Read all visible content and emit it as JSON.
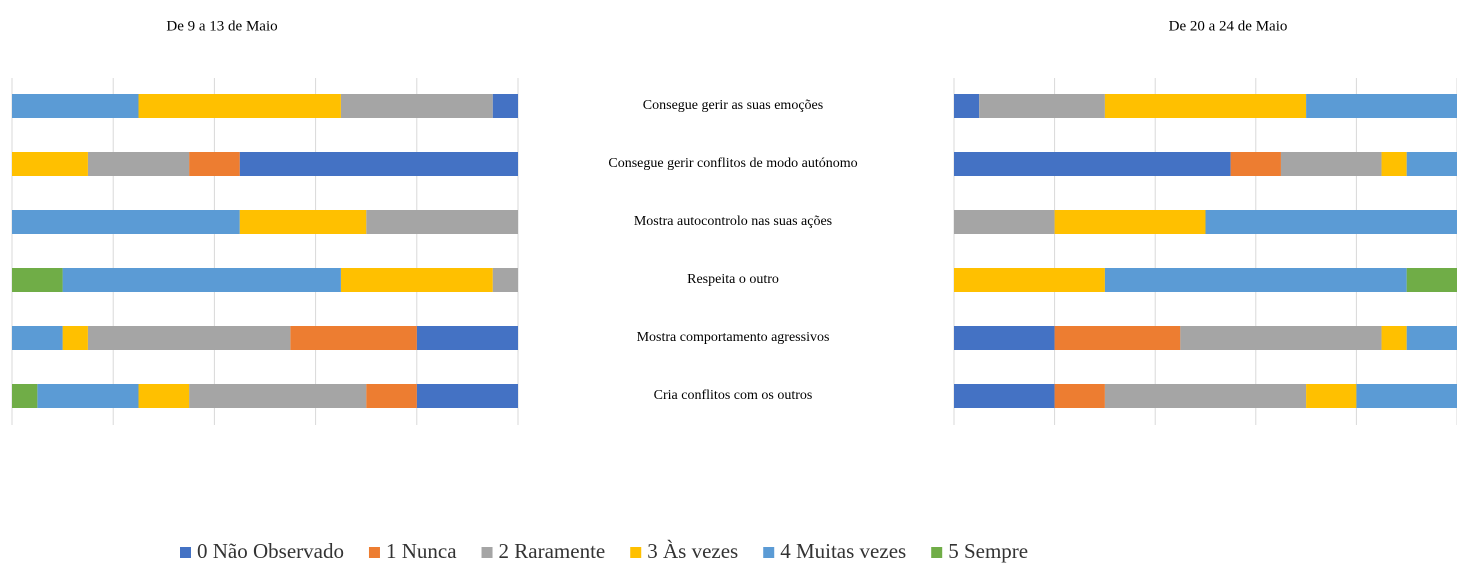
{
  "chart_data": [
    {
      "type": "bar",
      "orientation": "horizontal",
      "stacked": true,
      "x_reversed": true,
      "title": "De 9 a 13 de Maio",
      "categories": [
        "Consegue gerir as suas emoções",
        "Consegue gerir conflitos de modo autónomo",
        "Mostra autocontrolo nas suas ações",
        "Respeita o outro",
        "Mostra comportamento agressivos",
        "Cria conflitos com os outros"
      ],
      "xlim": [
        0,
        100
      ],
      "xticks": [
        0,
        20,
        40,
        60,
        80,
        100
      ],
      "grid": true,
      "legend": "bottom",
      "series": [
        {
          "name": "0 Não Observado",
          "color": "#4472c4",
          "values": [
            5,
            55,
            0,
            0,
            20,
            20
          ]
        },
        {
          "name": "1 Nunca",
          "color": "#ed7d31",
          "values": [
            0,
            10,
            0,
            0,
            25,
            10
          ]
        },
        {
          "name": "2 Raramente",
          "color": "#a5a5a5",
          "values": [
            30,
            20,
            30,
            5,
            40,
            35
          ]
        },
        {
          "name": "3 Às vezes",
          "color": "#ffc000",
          "values": [
            40,
            15,
            25,
            30,
            5,
            10
          ]
        },
        {
          "name": "4 Muitas vezes",
          "color": "#5b9bd5",
          "values": [
            25,
            0,
            45,
            55,
            10,
            20
          ]
        },
        {
          "name": "5 Sempre",
          "color": "#70ad47",
          "values": [
            0,
            0,
            0,
            10,
            0,
            5
          ]
        }
      ]
    },
    {
      "type": "bar",
      "orientation": "horizontal",
      "stacked": true,
      "x_reversed": false,
      "title": "De 20 a 24 de Maio",
      "xlim": [
        0,
        100
      ],
      "xticks": [
        0,
        20,
        40,
        60,
        80,
        100
      ],
      "grid": true,
      "series": [
        {
          "color": "#4472c4",
          "values": [
            5,
            55,
            0,
            0,
            20,
            20
          ]
        },
        {
          "color": "#ed7d31",
          "values": [
            0,
            10,
            0,
            0,
            25,
            10
          ]
        },
        {
          "color": "#a5a5a5",
          "values": [
            25,
            20,
            20,
            0,
            40,
            40
          ]
        },
        {
          "color": "#ffc000",
          "values": [
            40,
            5,
            30,
            30,
            5,
            10
          ]
        },
        {
          "color": "#5b9bd5",
          "values": [
            30,
            10,
            50,
            60,
            10,
            20
          ]
        },
        {
          "color": "#70ad47",
          "values": [
            0,
            0,
            0,
            10,
            0,
            0
          ]
        }
      ]
    }
  ]
}
